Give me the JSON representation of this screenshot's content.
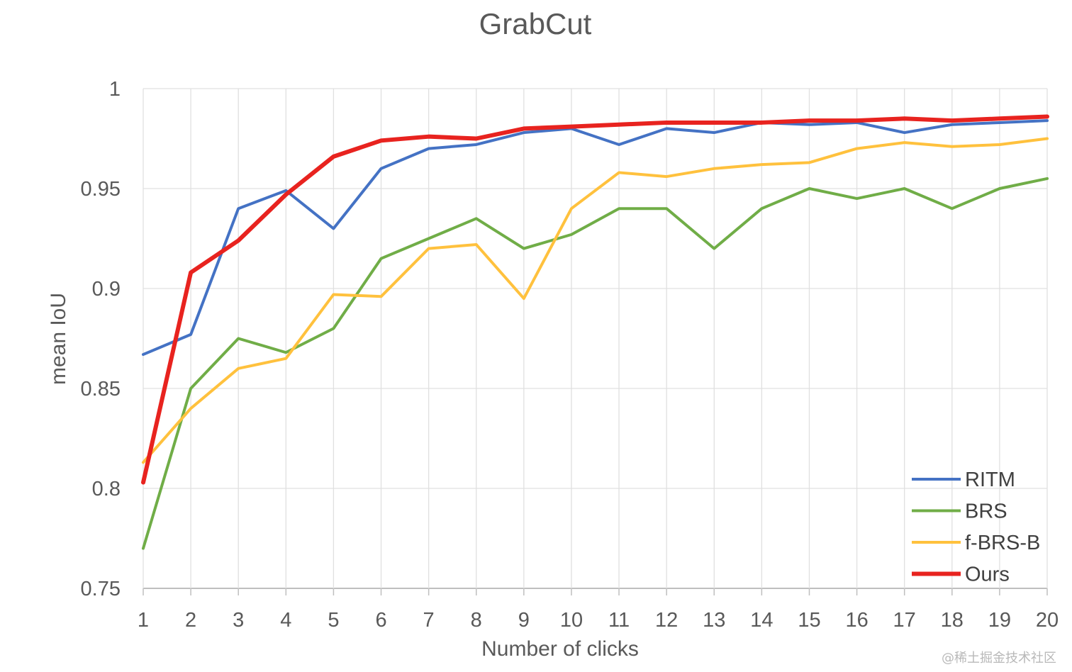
{
  "chart_data": {
    "type": "line",
    "title": "GrabCut",
    "xlabel": "Number of clicks",
    "ylabel": "mean IoU",
    "x": [
      1,
      2,
      3,
      4,
      5,
      6,
      7,
      8,
      9,
      10,
      11,
      12,
      13,
      14,
      15,
      16,
      17,
      18,
      19,
      20
    ],
    "ylim": [
      0.75,
      1
    ],
    "y_ticks": [
      "0.75",
      "0.8",
      "0.85",
      "0.9",
      "0.95",
      "1"
    ],
    "grid": true,
    "legend_position": "bottom-right",
    "series": [
      {
        "name": "RITM",
        "color": "#4472C4",
        "values": [
          0.867,
          0.877,
          0.94,
          0.949,
          0.93,
          0.96,
          0.97,
          0.972,
          0.978,
          0.98,
          0.972,
          0.98,
          0.978,
          0.983,
          0.982,
          0.983,
          0.978,
          0.982,
          0.983,
          0.984
        ]
      },
      {
        "name": "BRS",
        "color": "#70AD47",
        "values": [
          0.77,
          0.85,
          0.875,
          0.868,
          0.88,
          0.915,
          0.925,
          0.935,
          0.92,
          0.927,
          0.94,
          0.94,
          0.92,
          0.94,
          0.95,
          0.945,
          0.95,
          0.94,
          0.95,
          0.955
        ]
      },
      {
        "name": "f-BRS-B",
        "color": "#FFC13D",
        "values": [
          0.813,
          0.84,
          0.86,
          0.865,
          0.897,
          0.896,
          0.92,
          0.922,
          0.895,
          0.94,
          0.958,
          0.956,
          0.96,
          0.962,
          0.963,
          0.97,
          0.973,
          0.971,
          0.972,
          0.975
        ]
      },
      {
        "name": "Ours",
        "color": "#E8231F",
        "values": [
          0.803,
          0.908,
          0.924,
          0.947,
          0.966,
          0.974,
          0.976,
          0.975,
          0.98,
          0.981,
          0.982,
          0.983,
          0.983,
          0.983,
          0.984,
          0.984,
          0.985,
          0.984,
          0.985,
          0.986
        ]
      }
    ]
  },
  "watermark": "@稀土掘金技术社区"
}
